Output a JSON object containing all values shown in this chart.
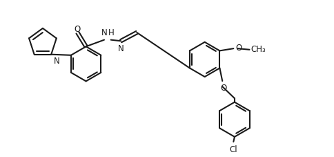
{
  "bg_color": "#ffffff",
  "line_color": "#1a1a1a",
  "line_width": 1.5,
  "fig_width": 4.84,
  "fig_height": 2.27,
  "dpi": 100,
  "xlim": [
    0,
    14
  ],
  "ylim": [
    -1.5,
    5.5
  ]
}
